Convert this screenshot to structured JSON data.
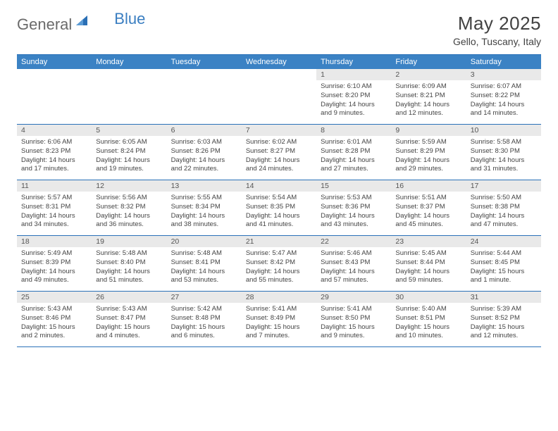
{
  "brand": {
    "part1": "General",
    "part2": "Blue"
  },
  "title": "May 2025",
  "location": "Gello, Tuscany, Italy",
  "colors": {
    "header_bg": "#3b82c4",
    "header_text": "#ffffff",
    "border": "#2a71b8",
    "daynum_bg": "#e9e9e9",
    "logo_gray": "#6a6a6a",
    "logo_blue": "#3a7ec1"
  },
  "day_names": [
    "Sunday",
    "Monday",
    "Tuesday",
    "Wednesday",
    "Thursday",
    "Friday",
    "Saturday"
  ],
  "weeks": [
    [
      {
        "n": "",
        "sr": "",
        "ss": "",
        "dl": ""
      },
      {
        "n": "",
        "sr": "",
        "ss": "",
        "dl": ""
      },
      {
        "n": "",
        "sr": "",
        "ss": "",
        "dl": ""
      },
      {
        "n": "",
        "sr": "",
        "ss": "",
        "dl": ""
      },
      {
        "n": "1",
        "sr": "Sunrise: 6:10 AM",
        "ss": "Sunset: 8:20 PM",
        "dl": "Daylight: 14 hours and 9 minutes."
      },
      {
        "n": "2",
        "sr": "Sunrise: 6:09 AM",
        "ss": "Sunset: 8:21 PM",
        "dl": "Daylight: 14 hours and 12 minutes."
      },
      {
        "n": "3",
        "sr": "Sunrise: 6:07 AM",
        "ss": "Sunset: 8:22 PM",
        "dl": "Daylight: 14 hours and 14 minutes."
      }
    ],
    [
      {
        "n": "4",
        "sr": "Sunrise: 6:06 AM",
        "ss": "Sunset: 8:23 PM",
        "dl": "Daylight: 14 hours and 17 minutes."
      },
      {
        "n": "5",
        "sr": "Sunrise: 6:05 AM",
        "ss": "Sunset: 8:24 PM",
        "dl": "Daylight: 14 hours and 19 minutes."
      },
      {
        "n": "6",
        "sr": "Sunrise: 6:03 AM",
        "ss": "Sunset: 8:26 PM",
        "dl": "Daylight: 14 hours and 22 minutes."
      },
      {
        "n": "7",
        "sr": "Sunrise: 6:02 AM",
        "ss": "Sunset: 8:27 PM",
        "dl": "Daylight: 14 hours and 24 minutes."
      },
      {
        "n": "8",
        "sr": "Sunrise: 6:01 AM",
        "ss": "Sunset: 8:28 PM",
        "dl": "Daylight: 14 hours and 27 minutes."
      },
      {
        "n": "9",
        "sr": "Sunrise: 5:59 AM",
        "ss": "Sunset: 8:29 PM",
        "dl": "Daylight: 14 hours and 29 minutes."
      },
      {
        "n": "10",
        "sr": "Sunrise: 5:58 AM",
        "ss": "Sunset: 8:30 PM",
        "dl": "Daylight: 14 hours and 31 minutes."
      }
    ],
    [
      {
        "n": "11",
        "sr": "Sunrise: 5:57 AM",
        "ss": "Sunset: 8:31 PM",
        "dl": "Daylight: 14 hours and 34 minutes."
      },
      {
        "n": "12",
        "sr": "Sunrise: 5:56 AM",
        "ss": "Sunset: 8:32 PM",
        "dl": "Daylight: 14 hours and 36 minutes."
      },
      {
        "n": "13",
        "sr": "Sunrise: 5:55 AM",
        "ss": "Sunset: 8:34 PM",
        "dl": "Daylight: 14 hours and 38 minutes."
      },
      {
        "n": "14",
        "sr": "Sunrise: 5:54 AM",
        "ss": "Sunset: 8:35 PM",
        "dl": "Daylight: 14 hours and 41 minutes."
      },
      {
        "n": "15",
        "sr": "Sunrise: 5:53 AM",
        "ss": "Sunset: 8:36 PM",
        "dl": "Daylight: 14 hours and 43 minutes."
      },
      {
        "n": "16",
        "sr": "Sunrise: 5:51 AM",
        "ss": "Sunset: 8:37 PM",
        "dl": "Daylight: 14 hours and 45 minutes."
      },
      {
        "n": "17",
        "sr": "Sunrise: 5:50 AM",
        "ss": "Sunset: 8:38 PM",
        "dl": "Daylight: 14 hours and 47 minutes."
      }
    ],
    [
      {
        "n": "18",
        "sr": "Sunrise: 5:49 AM",
        "ss": "Sunset: 8:39 PM",
        "dl": "Daylight: 14 hours and 49 minutes."
      },
      {
        "n": "19",
        "sr": "Sunrise: 5:48 AM",
        "ss": "Sunset: 8:40 PM",
        "dl": "Daylight: 14 hours and 51 minutes."
      },
      {
        "n": "20",
        "sr": "Sunrise: 5:48 AM",
        "ss": "Sunset: 8:41 PM",
        "dl": "Daylight: 14 hours and 53 minutes."
      },
      {
        "n": "21",
        "sr": "Sunrise: 5:47 AM",
        "ss": "Sunset: 8:42 PM",
        "dl": "Daylight: 14 hours and 55 minutes."
      },
      {
        "n": "22",
        "sr": "Sunrise: 5:46 AM",
        "ss": "Sunset: 8:43 PM",
        "dl": "Daylight: 14 hours and 57 minutes."
      },
      {
        "n": "23",
        "sr": "Sunrise: 5:45 AM",
        "ss": "Sunset: 8:44 PM",
        "dl": "Daylight: 14 hours and 59 minutes."
      },
      {
        "n": "24",
        "sr": "Sunrise: 5:44 AM",
        "ss": "Sunset: 8:45 PM",
        "dl": "Daylight: 15 hours and 1 minute."
      }
    ],
    [
      {
        "n": "25",
        "sr": "Sunrise: 5:43 AM",
        "ss": "Sunset: 8:46 PM",
        "dl": "Daylight: 15 hours and 2 minutes."
      },
      {
        "n": "26",
        "sr": "Sunrise: 5:43 AM",
        "ss": "Sunset: 8:47 PM",
        "dl": "Daylight: 15 hours and 4 minutes."
      },
      {
        "n": "27",
        "sr": "Sunrise: 5:42 AM",
        "ss": "Sunset: 8:48 PM",
        "dl": "Daylight: 15 hours and 6 minutes."
      },
      {
        "n": "28",
        "sr": "Sunrise: 5:41 AM",
        "ss": "Sunset: 8:49 PM",
        "dl": "Daylight: 15 hours and 7 minutes."
      },
      {
        "n": "29",
        "sr": "Sunrise: 5:41 AM",
        "ss": "Sunset: 8:50 PM",
        "dl": "Daylight: 15 hours and 9 minutes."
      },
      {
        "n": "30",
        "sr": "Sunrise: 5:40 AM",
        "ss": "Sunset: 8:51 PM",
        "dl": "Daylight: 15 hours and 10 minutes."
      },
      {
        "n": "31",
        "sr": "Sunrise: 5:39 AM",
        "ss": "Sunset: 8:52 PM",
        "dl": "Daylight: 15 hours and 12 minutes."
      }
    ]
  ]
}
